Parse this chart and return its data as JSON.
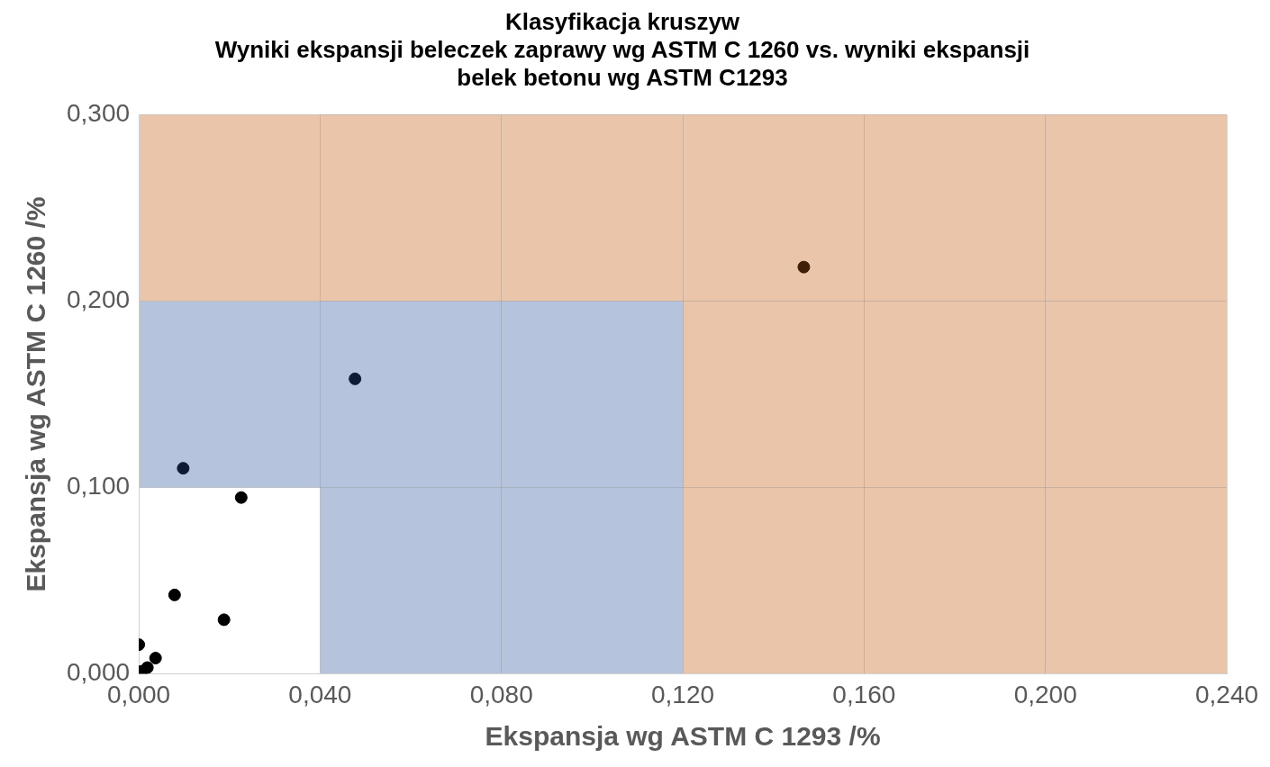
{
  "chart_data": {
    "type": "scatter",
    "title": "Klasyfikacja kruszyw\nWyniki ekspansji beleczek zaprawy wg ASTM C 1260 vs. wyniki ekspansji\nbelek betonu wg ASTM C1293",
    "xlabel": "Ekspansja wg ASTM C 1293 /%",
    "ylabel": "Ekspansja wg ASTM C 1260 /%",
    "x": [
      0.1467,
      0.0477,
      0.0098,
      0.0226,
      0.0079,
      0.0188,
      0.0,
      0.0037,
      0.0019,
      0.0006
    ],
    "values": [
      0.2183,
      0.1583,
      0.1103,
      0.0946,
      0.0423,
      0.029,
      0.0156,
      0.0084,
      0.0033,
      0.0013
    ],
    "colors": [
      "#3f1f08",
      "#0f1a33",
      "#0f1a33",
      "#000000",
      "#000000",
      "#000000",
      "#000000",
      "#000000",
      "#000000",
      "#000000"
    ],
    "marker": "circle",
    "grid": true,
    "legend": false,
    "xlim": [
      0,
      0.24
    ],
    "xticks": [
      {
        "value": 0,
        "label": "0,000"
      },
      {
        "value": 0.04,
        "label": "0,040"
      },
      {
        "value": 0.08,
        "label": "0,080"
      },
      {
        "value": 0.12,
        "label": "0,120"
      },
      {
        "value": 0.16,
        "label": "0,160"
      },
      {
        "value": 0.2,
        "label": "0,200"
      },
      {
        "value": 0.24,
        "label": "0,240"
      }
    ],
    "ylim": [
      0,
      0.3
    ],
    "yticks": [
      {
        "value": 0,
        "label": "0,000"
      },
      {
        "value": 0.1,
        "label": "0,100"
      },
      {
        "value": 0.2,
        "label": "0,200"
      },
      {
        "value": 0.3,
        "label": "0,300"
      }
    ],
    "bands": [
      {
        "axis": "y",
        "from": 0.1,
        "to": 0.2,
        "color": "#b6c3dc"
      },
      {
        "axis": "x",
        "from": 0.04,
        "to": 0.12,
        "color": "#b6c3dc"
      },
      {
        "axis": "y",
        "from": 0.2,
        "to": 0.3,
        "color": "#eac5aa"
      },
      {
        "axis": "x",
        "from": 0.12,
        "to": 0.24,
        "color": "#eac5aa"
      }
    ]
  }
}
